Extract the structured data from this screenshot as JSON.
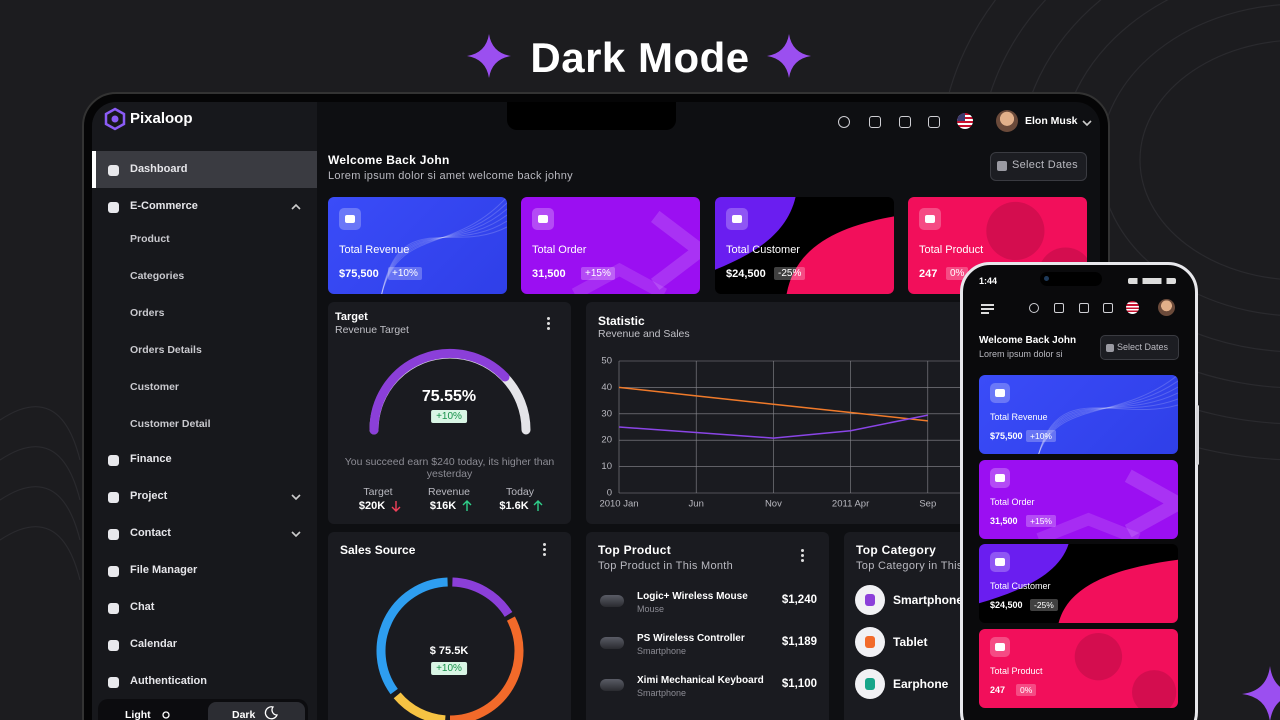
{
  "title": "Dark Mode",
  "tablet": {
    "brand": "Pixaloop",
    "user": "Elon Musk",
    "sidebar": [
      {
        "label": "Dashboard"
      },
      {
        "label": "E-Commerce",
        "children": [
          "Product",
          "Categories",
          "Orders",
          "Orders Details",
          "Customer",
          "Customer Detail"
        ]
      },
      {
        "label": "Finance"
      },
      {
        "label": "Project"
      },
      {
        "label": "Contact"
      },
      {
        "label": "File Manager"
      },
      {
        "label": "Chat"
      },
      {
        "label": "Calendar"
      },
      {
        "label": "Authentication"
      }
    ],
    "theme": [
      "Light",
      "Dark"
    ],
    "welcome": "Welcome Back John",
    "welcome_sub": "Lorem ipsum dolor si amet welcome back johny",
    "select_dates": "Select Dates",
    "cards": [
      {
        "label": "Total Revenue",
        "value": "$75,500",
        "change": "+10%"
      },
      {
        "label": "Total Order",
        "value": "31,500",
        "change": "+15%"
      },
      {
        "label": "Total Customer",
        "value": "$24,500",
        "change": "-25%"
      },
      {
        "label": "Total Product",
        "value": "247",
        "change": "0%"
      }
    ],
    "target": {
      "title": "Target",
      "subtitle": "Revenue Target",
      "value": "75.55%",
      "change": "+10%",
      "note": "You succeed earn $240 today, its higher than yesterday",
      "stats": [
        {
          "label": "Target",
          "value": "$20K"
        },
        {
          "label": "Revenue",
          "value": "$16K"
        },
        {
          "label": "Today",
          "value": "$1.6K"
        }
      ]
    },
    "statistic": {
      "title": "Statistic",
      "subtitle": "Revenue and Sales",
      "chart": {
        "type": "line",
        "categories": [
          "2010 Jan",
          "Jun",
          "Nov",
          "2011 Apr",
          "Sep"
        ],
        "series": [
          {
            "color": "#f07a2a",
            "values": [
              40,
              36.8,
              33.6,
              30.5,
              27.3
            ]
          },
          {
            "color": "#8a45e6",
            "values": [
              25,
              22.9,
              20.8,
              23.6,
              29.5
            ]
          }
        ],
        "ylim": [
          0,
          50
        ],
        "yticks": [
          0,
          10,
          20,
          30,
          40,
          50
        ],
        "grid": true
      }
    },
    "sales_source": {
      "title": "Sales Source",
      "value": "$ 75.5K",
      "change": "+10%"
    },
    "top_product": {
      "title": "Top Product",
      "subtitle": "Top Product in This Month",
      "items": [
        {
          "name": "Logic+ Wireless Mouse",
          "category": "Mouse",
          "price": "$1,240"
        },
        {
          "name": "PS Wireless Controller",
          "category": "Smartphone",
          "price": "$1,189"
        },
        {
          "name": "Ximi Mechanical Keyboard",
          "category": "Smartphone",
          "price": "$1,100"
        }
      ]
    },
    "top_category": {
      "title": "Top Category",
      "subtitle": "Top Category in This Month",
      "items": [
        "Smartphone",
        "Tablet",
        "Earphone"
      ]
    }
  },
  "phone": {
    "time": "1:44",
    "welcome": "Welcome Back John",
    "welcome_sub": "Lorem ipsum dolor si",
    "select_dates": "Select Dates"
  }
}
